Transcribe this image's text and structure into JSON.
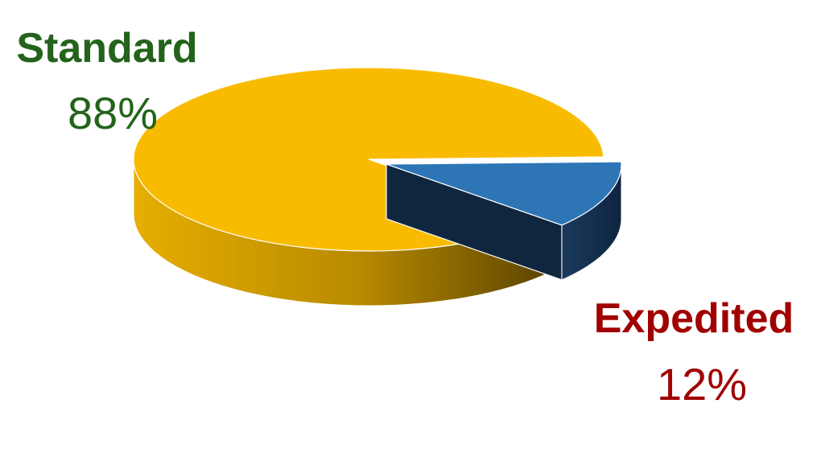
{
  "chart_data": {
    "type": "pie",
    "style": "3d-exploded",
    "legend": "none",
    "slices": [
      {
        "label": "Standard",
        "value": 88,
        "value_label": "88%",
        "color": "#F9BB00",
        "side_color": "#D9A300",
        "label_color": "#23631B"
      },
      {
        "label": "Expedited",
        "value": 12,
        "value_label": "12%",
        "color": "#2E75B6",
        "side_color": "#16324F",
        "label_color": "#A00000",
        "exploded": true
      }
    ]
  }
}
